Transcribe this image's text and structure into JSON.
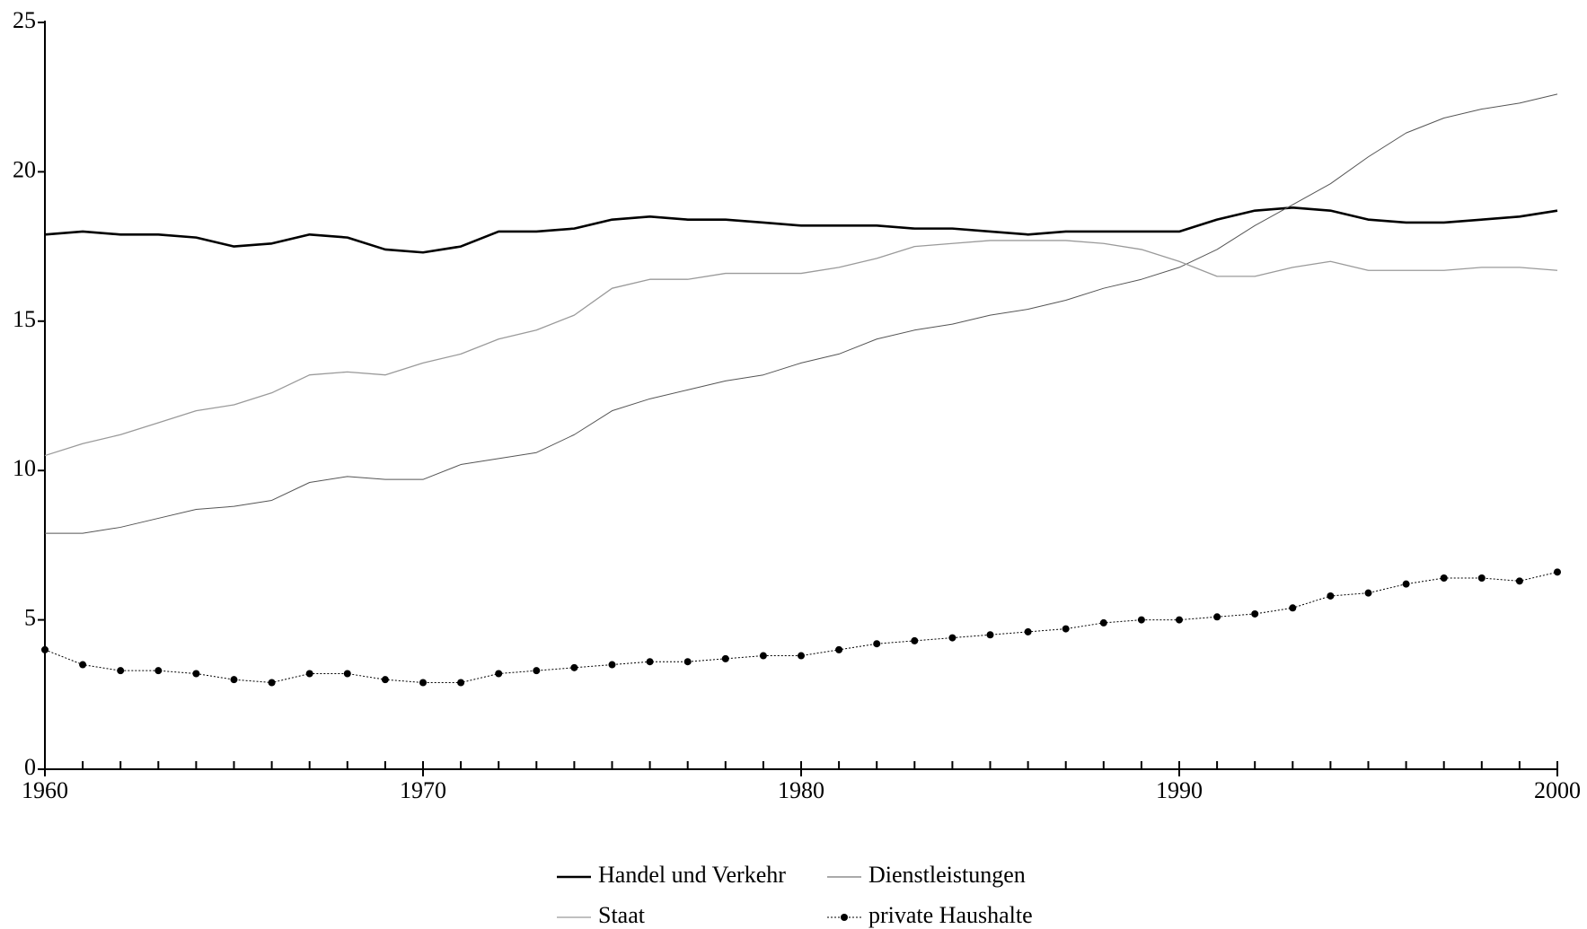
{
  "chart_data": {
    "type": "line",
    "x": [
      1960,
      1961,
      1962,
      1963,
      1964,
      1965,
      1966,
      1967,
      1968,
      1969,
      1970,
      1971,
      1972,
      1973,
      1974,
      1975,
      1976,
      1977,
      1978,
      1979,
      1980,
      1981,
      1982,
      1983,
      1984,
      1985,
      1986,
      1987,
      1988,
      1989,
      1990,
      1991,
      1992,
      1993,
      1994,
      1995,
      1996,
      1997,
      1998,
      1999,
      2000
    ],
    "series": [
      {
        "name": "Handel und Verkehr",
        "color": "#000000",
        "line_width": 2.6,
        "values": [
          17.9,
          18.0,
          17.9,
          17.9,
          17.8,
          17.5,
          17.6,
          17.9,
          17.8,
          17.4,
          17.3,
          17.5,
          18.0,
          18.0,
          18.1,
          18.4,
          18.5,
          18.4,
          18.4,
          18.3,
          18.2,
          18.2,
          18.2,
          18.1,
          18.1,
          18.0,
          17.9,
          18.0,
          18.0,
          18.0,
          18.0,
          18.4,
          18.7,
          18.8,
          18.7,
          18.4,
          18.3,
          18.3,
          18.4,
          18.5,
          18.7
        ]
      },
      {
        "name": "Dienstleistungen",
        "color": "#555555",
        "line_width": 1,
        "values": [
          7.9,
          7.9,
          8.1,
          8.4,
          8.7,
          8.8,
          9.0,
          9.6,
          9.8,
          9.7,
          9.7,
          10.2,
          10.4,
          10.6,
          11.2,
          12.0,
          12.4,
          12.7,
          13.0,
          13.2,
          13.6,
          13.9,
          14.4,
          14.7,
          14.9,
          15.2,
          15.4,
          15.7,
          16.1,
          16.4,
          16.8,
          17.4,
          18.2,
          18.9,
          19.6,
          20.5,
          21.3,
          21.8,
          22.1,
          22.3,
          22.6
        ]
      },
      {
        "name": "Staat",
        "color": "#9a9a9a",
        "line_width": 1.3,
        "values": [
          10.5,
          10.9,
          11.2,
          11.6,
          12.0,
          12.2,
          12.6,
          13.2,
          13.3,
          13.2,
          13.6,
          13.9,
          14.4,
          14.7,
          15.2,
          16.1,
          16.4,
          16.4,
          16.6,
          16.6,
          16.6,
          16.8,
          17.1,
          17.5,
          17.6,
          17.7,
          17.7,
          17.7,
          17.6,
          17.4,
          17.0,
          16.5,
          16.5,
          16.8,
          17.0,
          16.7,
          16.7,
          16.7,
          16.8,
          16.8,
          16.7
        ]
      },
      {
        "name": "private Haushalte",
        "color": "#000000",
        "line_width": 1,
        "marker": "circle",
        "values": [
          4.0,
          3.5,
          3.3,
          3.3,
          3.2,
          3.0,
          2.9,
          3.2,
          3.2,
          3.0,
          2.9,
          2.9,
          3.2,
          3.3,
          3.4,
          3.5,
          3.6,
          3.6,
          3.7,
          3.8,
          3.8,
          4.0,
          4.2,
          4.3,
          4.4,
          4.5,
          4.6,
          4.7,
          4.9,
          5.0,
          5.0,
          5.1,
          5.2,
          5.4,
          5.8,
          5.9,
          6.2,
          6.4,
          6.4,
          6.3,
          6.6
        ]
      }
    ],
    "xlim": [
      1960,
      2000
    ],
    "xticks": [
      1960,
      1970,
      1980,
      1990,
      2000
    ],
    "ylim": [
      0,
      25
    ],
    "yticks": [
      0,
      5,
      10,
      15,
      20,
      25
    ],
    "grid": false,
    "legend": "bottom"
  }
}
